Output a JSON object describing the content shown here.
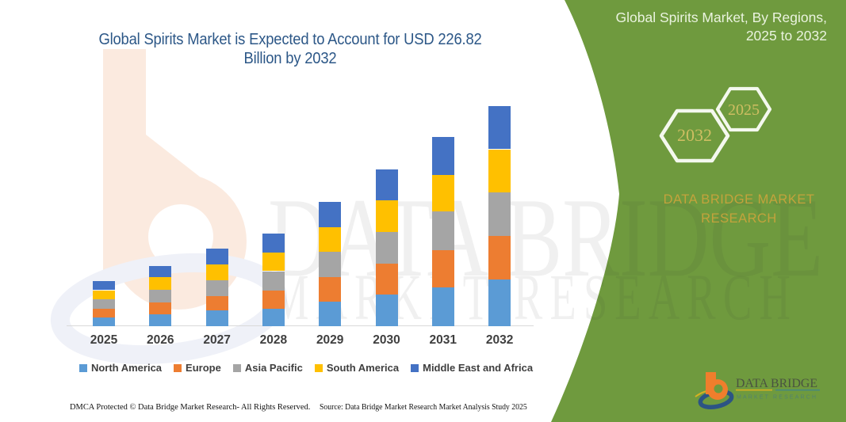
{
  "title": {
    "line1": "Global Spirits Market is Expected to Account for USD 226.82",
    "line2": "Billion by 2032"
  },
  "side_panel": {
    "heading_line1": "Global Spirits Market, By Regions,",
    "heading_line2": "2025 to 2032",
    "hexagon_back_label": "2032",
    "hexagon_front_label": "2025",
    "brand_line1": "DATA BRIDGE MARKET",
    "brand_line2": "RESEARCH",
    "panel_color": "#6F9A3E",
    "gold_text_color": "#C3A33C"
  },
  "logo": {
    "name": "DATA BRIDGE",
    "subtitle": "MARKET RESEARCH"
  },
  "watermark": {
    "line1": "DATA BRIDGE",
    "line2": "MARKET RESEARCH"
  },
  "footer": {
    "dmca": "DMCA Protected © Data Bridge Market Research-  All Rights Reserved.",
    "source": "Source: Data Bridge Market Research  Market Analysis Study 2025"
  },
  "chart_data": {
    "type": "bar",
    "stacked": true,
    "unit": "USD Billion",
    "title": "Global Spirits Market is Expected to Account for USD 226.82 Billion by 2032",
    "xlabel": "",
    "ylabel": "",
    "grid": false,
    "y_axis_visible": false,
    "legend_position": "bottom",
    "categories": [
      "2025",
      "2026",
      "2027",
      "2028",
      "2029",
      "2030",
      "2031",
      "2032"
    ],
    "totals": [
      46.9,
      62.6,
      80.1,
      95.6,
      128.4,
      161.9,
      195.2,
      226.82
    ],
    "series": [
      {
        "name": "North America",
        "color": "#5B9BD5",
        "values": [
          8.7,
          12.0,
          16.1,
          17.7,
          25.7,
          32.4,
          40.4,
          48.2
        ]
      },
      {
        "name": "Europe",
        "color": "#ED7D31",
        "values": [
          9.5,
          12.6,
          14.7,
          19.3,
          24.9,
          31.9,
          38.3,
          44.8
        ]
      },
      {
        "name": "Asia Pacific",
        "color": "#A5A5A5",
        "values": [
          9.3,
          13.3,
          16.5,
          19.8,
          26.1,
          33.0,
          39.9,
          45.2
        ]
      },
      {
        "name": "South America",
        "color": "#FFC000",
        "values": [
          9.7,
          12.7,
          16.3,
          18.9,
          25.7,
          32.9,
          37.5,
          44.4
        ]
      },
      {
        "name": "Middle East and Africa",
        "color": "#4472C4",
        "values": [
          9.6,
          11.9,
          16.5,
          19.9,
          26.1,
          31.6,
          39.1,
          44.3
        ]
      }
    ]
  }
}
